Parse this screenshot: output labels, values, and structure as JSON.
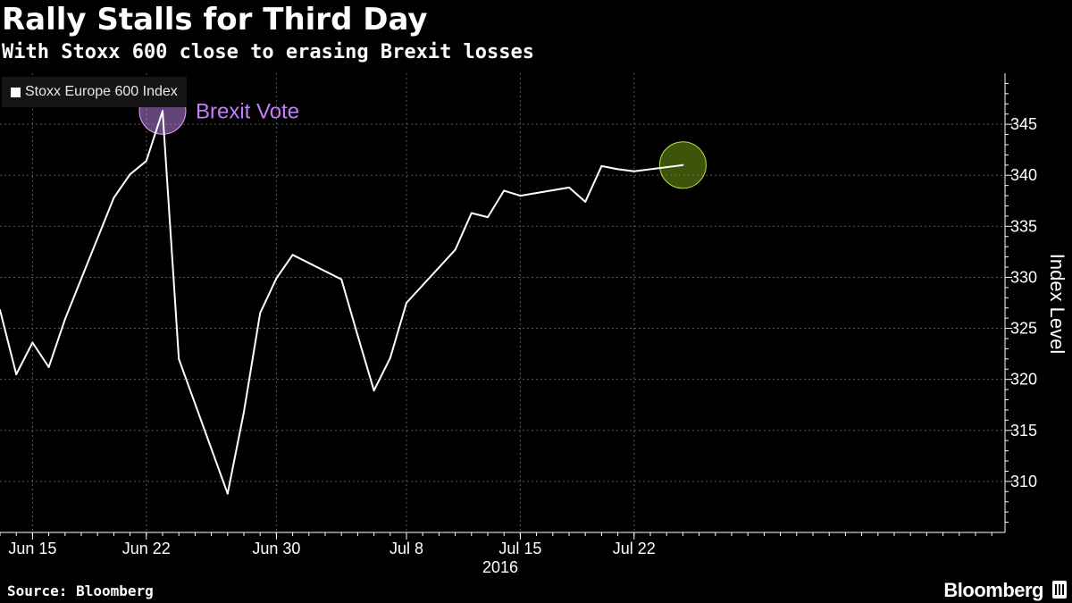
{
  "header": {
    "title": "Rally Stalls for Third Day",
    "subtitle": "With Stoxx 600 close to erasing Brexit losses"
  },
  "footer": {
    "source": "Source: Bloomberg",
    "brand": "Bloomberg"
  },
  "colors": {
    "background": "#000000",
    "line": "#ffffff",
    "brexit_marker": "#b57edc",
    "end_marker": "#6f9a12"
  },
  "chart_data": {
    "type": "line",
    "title": "Rally Stalls for Third Day",
    "subtitle": "With Stoxx 600 close to erasing Brexit losses",
    "ylabel": "Index Level",
    "xlabel": "2016",
    "legend": [
      "Stoxx Europe 600 Index"
    ],
    "legend_position": "top-left",
    "grid": true,
    "ylim": [
      305,
      350
    ],
    "yticks": [
      310,
      315,
      320,
      325,
      330,
      335,
      340,
      345
    ],
    "x_tick_labels": [
      "Jun 15",
      "Jun 22",
      "Jun 30",
      "Jul 8",
      "Jul 15",
      "Jul 22"
    ],
    "x_tick_dates": [
      "2016-06-15",
      "2016-06-22",
      "2016-06-30",
      "2016-07-08",
      "2016-07-15",
      "2016-07-22"
    ],
    "series": [
      {
        "name": "Stoxx Europe 600 Index",
        "x": [
          "2016-06-13",
          "2016-06-14",
          "2016-06-15",
          "2016-06-16",
          "2016-06-17",
          "2016-06-20",
          "2016-06-21",
          "2016-06-22",
          "2016-06-23",
          "2016-06-24",
          "2016-06-27",
          "2016-06-28",
          "2016-06-29",
          "2016-06-30",
          "2016-07-01",
          "2016-07-04",
          "2016-07-05",
          "2016-07-06",
          "2016-07-07",
          "2016-07-08",
          "2016-07-11",
          "2016-07-12",
          "2016-07-13",
          "2016-07-14",
          "2016-07-15",
          "2016-07-18",
          "2016-07-19",
          "2016-07-20",
          "2016-07-21",
          "2016-07-22",
          "2016-07-25"
        ],
        "values": [
          326.8,
          320.5,
          323.6,
          321.2,
          325.9,
          337.8,
          340.1,
          341.4,
          346.3,
          322.0,
          308.8,
          316.8,
          326.5,
          329.9,
          332.2,
          329.8,
          324.3,
          318.9,
          322.1,
          327.5,
          332.7,
          336.3,
          335.9,
          338.5,
          338.0,
          338.8,
          337.4,
          340.9,
          340.6,
          340.4,
          341.0
        ]
      }
    ],
    "annotations": [
      {
        "label": "Brexit Vote",
        "x": "2016-06-23",
        "y": 346.3
      },
      {
        "label": "",
        "x": "2016-07-25",
        "y": 341.0
      }
    ]
  }
}
